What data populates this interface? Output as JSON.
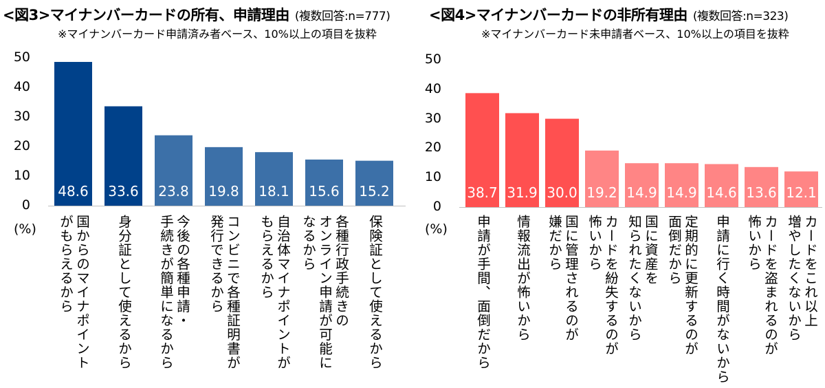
{
  "chart_data": [
    {
      "type": "bar",
      "title": "<図3>マイナンバーカードの所有、申請理由",
      "subtitle": "(複数回答:n=777)",
      "note": "※マイナンバーカード申請済み者ベース、10%以上の項目を抜粋",
      "ylabel": "(%)",
      "ylim": [
        0,
        50
      ],
      "yticks": [
        0,
        10,
        20,
        30,
        40,
        50
      ],
      "categories": [
        "国からのマイナポイント\nがもらえるから",
        "身分証として使えるから",
        "今後の各種申請・\n手続きが簡単になるから",
        "コンビニで各種証明書が\n発行できるから",
        "自治体マイナポイントが\nもらえるから",
        "各種行政手続きの\nオンライン申請が可能に\nなるから",
        "保険証として使えるから"
      ],
      "values": [
        48.6,
        33.6,
        23.8,
        19.8,
        18.1,
        15.6,
        15.2
      ],
      "value_labels": [
        "48.6",
        "33.6",
        "23.8",
        "19.8",
        "18.1",
        "15.6",
        "15.2"
      ],
      "colors": [
        "#00418A",
        "#00418A",
        "#3C70A8",
        "#3C70A8",
        "#3C70A8",
        "#3C70A8",
        "#3C70A8"
      ]
    },
    {
      "type": "bar",
      "title": "<図4>マイナンバーカードの非所有理由",
      "subtitle": "(複数回答:n=323)",
      "note": "※マイナンバーカード未申請者ベース、10%以上の項目を抜粋",
      "ylabel": "(%)",
      "ylim": [
        0,
        50
      ],
      "yticks": [
        0,
        10,
        20,
        30,
        40,
        50
      ],
      "categories": [
        "申請が手間、面倒だから",
        "情報流出が怖いから",
        "国に管理されるのが\n嫌だから",
        "カードを紛失するのが\n怖いから",
        "国に資産を\n知られたくないから",
        "定期的に更新するのが\n面倒だから",
        "申請に行く時間がないから",
        "カードを盗まれるのが\n怖いから",
        "カードをこれ以上\n増やしたくないから"
      ],
      "values": [
        38.7,
        31.9,
        30.0,
        19.2,
        14.9,
        14.9,
        14.6,
        13.6,
        12.1
      ],
      "value_labels": [
        "38.7",
        "31.9",
        "30.0",
        "19.2",
        "14.9",
        "14.9",
        "14.6",
        "13.6",
        "12.1"
      ],
      "colors": [
        "#FF5050",
        "#FF5050",
        "#FF5050",
        "#FF8585",
        "#FF8585",
        "#FF8585",
        "#FF8585",
        "#FF8585",
        "#FF8585"
      ]
    }
  ]
}
